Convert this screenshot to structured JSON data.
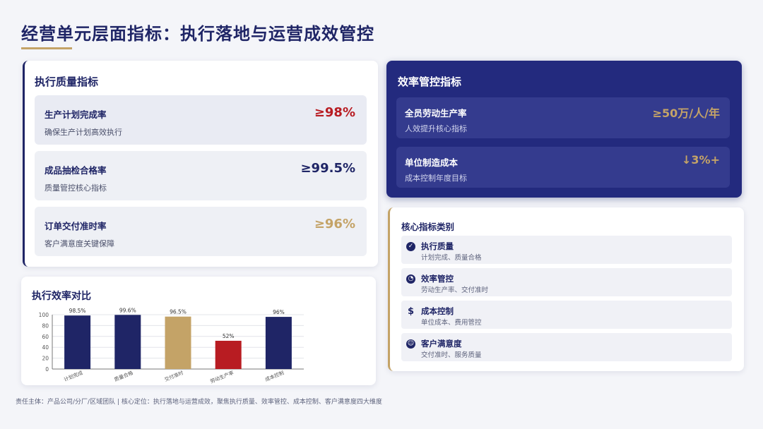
{
  "page": {
    "title": "经营单元层面指标：执行落地与运营成效管控",
    "footer": "责任主体：产品公司/分厂/区域团队 | 核心定位：执行落地与运营成效，聚焦执行质量、效率管控、成本控制、客户满意度四大维度"
  },
  "colors": {
    "navy": "#1f2566",
    "gold": "#c4a367",
    "red": "#b81c22"
  },
  "quality": {
    "header": "执行质量指标",
    "metrics": [
      {
        "name": "生产计划完成率",
        "desc": "确保生产计划高效执行",
        "value": "≥98%",
        "color": "#b81c22"
      },
      {
        "name": "成品抽检合格率",
        "desc": "质量管控核心指标",
        "value": "≥99.5%",
        "color": "#1f2566"
      },
      {
        "name": "订单交付准时率",
        "desc": "客户满意度关键保障",
        "value": "≥96%",
        "color": "#c4a367"
      }
    ]
  },
  "efficiency": {
    "header": "效率管控指标",
    "metrics": [
      {
        "name": "全员劳动生产率",
        "desc": "人效提升核心指标",
        "value": "≥50万/人/年"
      },
      {
        "name": "单位制造成本",
        "desc": "成本控制年度目标",
        "value": "↓3%+"
      }
    ]
  },
  "chart": {
    "header": "执行效率对比"
  },
  "chart_data": {
    "type": "bar",
    "title": "执行效率对比",
    "categories": [
      "计划完成",
      "质量合格",
      "交付准时",
      "劳动生产率",
      "成本控制"
    ],
    "values": [
      98.5,
      99.6,
      96.5,
      52,
      96
    ],
    "value_labels": [
      "98.5%",
      "99.6%",
      "96.5%",
      "52%",
      "96%"
    ],
    "bar_colors": [
      "#1f2566",
      "#1f2566",
      "#c4a367",
      "#b81c22",
      "#1f2566"
    ],
    "y_ticks": [
      0,
      20,
      40,
      60,
      80,
      100
    ],
    "ylim": [
      0,
      100
    ],
    "grid": true,
    "xlabel": "",
    "ylabel": ""
  },
  "categories": {
    "header": "核心指标类别",
    "items": [
      {
        "icon": "check-circle-icon",
        "glyph": "✓",
        "title": "执行质量",
        "desc": "计划完成、质量合格"
      },
      {
        "icon": "gauge-icon",
        "glyph": "◔",
        "title": "效率管控",
        "desc": "劳动生产率、交付准时"
      },
      {
        "icon": "dollar-icon",
        "glyph": "$",
        "title": "成本控制",
        "desc": "单位成本、费用管控"
      },
      {
        "icon": "smile-icon",
        "glyph": "☺",
        "title": "客户满意度",
        "desc": "交付准时、服务质量"
      }
    ]
  }
}
